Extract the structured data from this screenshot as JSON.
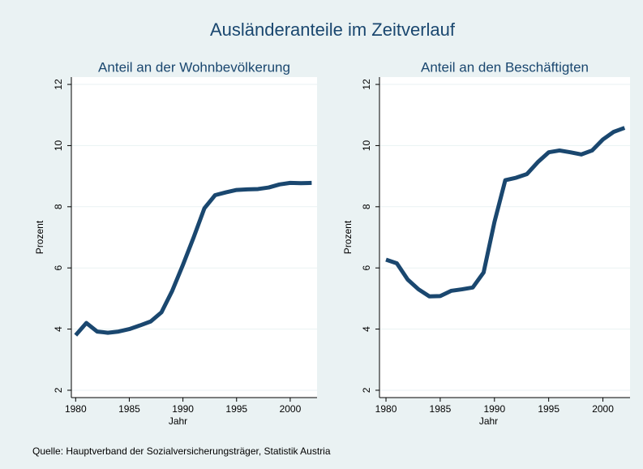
{
  "title": "Ausländeranteile im Zeitverlauf",
  "note": "Quelle: Hauptverband der Sozialversicherungsträger, Statistik Austria",
  "chart_data": [
    {
      "type": "line",
      "subtitle": "Anteil an der Wohnbevölkerung",
      "x": [
        1980,
        1981,
        1982,
        1983,
        1984,
        1985,
        1986,
        1987,
        1988,
        1989,
        1990,
        1991,
        1992,
        1993,
        1994,
        1995,
        1996,
        1997,
        1998,
        1999,
        2000,
        2001,
        2002
      ],
      "values": [
        3.8,
        4.2,
        3.92,
        3.88,
        3.92,
        4.0,
        4.12,
        4.25,
        4.55,
        5.25,
        6.1,
        7.0,
        7.95,
        8.38,
        8.47,
        8.55,
        8.57,
        8.58,
        8.63,
        8.73,
        8.78,
        8.77,
        8.78
      ],
      "color": "#1a476f",
      "xlim": [
        1979.6,
        2002.5
      ],
      "xticks": [
        1980,
        1985,
        1990,
        1995,
        2000
      ],
      "ylim": [
        1.76,
        12.24
      ],
      "yticks": [
        2,
        4,
        6,
        8,
        10,
        12
      ],
      "xlabel": "Jahr",
      "ylabel": "Prozent",
      "grid": true
    },
    {
      "type": "line",
      "subtitle": "Anteil an den Beschäftigten",
      "x": [
        1980,
        1981,
        1982,
        1983,
        1984,
        1985,
        1986,
        1987,
        1988,
        1989,
        1990,
        1991,
        1992,
        1993,
        1994,
        1995,
        1996,
        1997,
        1998,
        1999,
        2000,
        2001,
        2002
      ],
      "values": [
        6.27,
        6.15,
        5.62,
        5.3,
        5.07,
        5.08,
        5.25,
        5.3,
        5.36,
        5.85,
        7.5,
        8.87,
        8.95,
        9.07,
        9.46,
        9.78,
        9.84,
        9.78,
        9.71,
        9.84,
        10.2,
        10.45,
        10.58
      ],
      "color": "#1a476f",
      "xlim": [
        1979.4,
        2002.5
      ],
      "xticks": [
        1980,
        1985,
        1990,
        1995,
        2000
      ],
      "ylim": [
        1.76,
        12.24
      ],
      "yticks": [
        2,
        4,
        6,
        8,
        10,
        12
      ],
      "xlabel": "Jahr",
      "ylabel": "Prozent",
      "grid": true
    }
  ]
}
